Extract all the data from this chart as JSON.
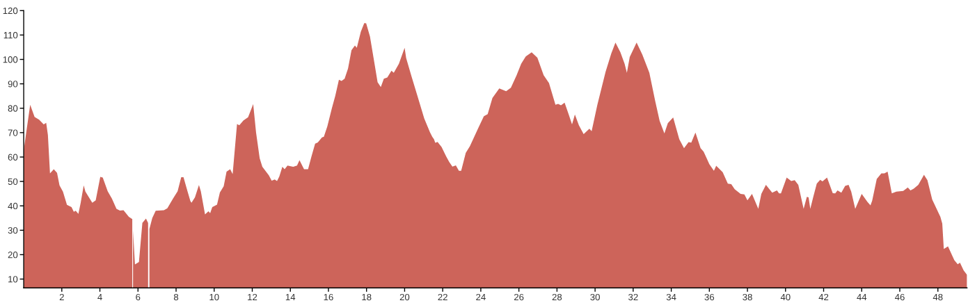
{
  "chart_data": {
    "type": "area",
    "color": "#cd645a",
    "x": [
      0,
      0.15,
      0.34,
      0.57,
      0.81,
      1.05,
      1.18,
      1.27,
      1.38,
      1.58,
      1.75,
      1.88,
      2.06,
      2.27,
      2.51,
      2.63,
      2.73,
      2.87,
      2.99,
      3.15,
      3.24,
      3.6,
      3.78,
      4.02,
      4.15,
      4.41,
      4.63,
      4.87,
      5.05,
      5.24,
      5.52,
      5.7,
      5.72,
      5.74,
      5.84,
      6.05,
      6.23,
      6.42,
      6.53,
      6.56,
      6.6,
      6.75,
      6.93,
      7.36,
      7.54,
      7.84,
      8.08,
      8.27,
      8.39,
      8.6,
      8.75,
      8.81,
      8.99,
      9.2,
      9.3,
      9.52,
      9.7,
      9.79,
      9.9,
      10.15,
      10.3,
      10.5,
      10.65,
      10.84,
      10.97,
      11.2,
      11.32,
      11.54,
      11.78,
      12.05,
      12.2,
      12.39,
      12.53,
      12.87,
      13.02,
      13.18,
      13.3,
      13.42,
      13.58,
      13.7,
      13.85,
      14.15,
      14.35,
      14.48,
      14.72,
      14.93,
      15.1,
      15.3,
      15.44,
      15.66,
      15.76,
      15.94,
      16.18,
      16.36,
      16.55,
      16.69,
      16.85,
      17.03,
      17.21,
      17.39,
      17.49,
      17.7,
      17.88,
      17.98,
      18.18,
      18.42,
      18.58,
      18.75,
      18.91,
      19.09,
      19.31,
      19.43,
      19.7,
      20.0,
      20.08,
      20.36,
      20.67,
      21.03,
      21.33,
      21.45,
      21.54,
      21.61,
      21.73,
      21.94,
      22.18,
      22.34,
      22.51,
      22.69,
      22.85,
      22.97,
      23.21,
      23.43,
      23.82,
      24.16,
      24.36,
      24.61,
      24.97,
      25.33,
      25.58,
      25.88,
      26.12,
      26.36,
      26.67,
      26.97,
      27.3,
      27.58,
      27.92,
      28.06,
      28.21,
      28.4,
      28.61,
      28.79,
      28.94,
      29.15,
      29.4,
      29.7,
      29.82,
      30.12,
      30.55,
      30.85,
      31.07,
      31.33,
      31.55,
      31.67,
      31.82,
      32.18,
      32.48,
      32.85,
      33.15,
      33.39,
      33.64,
      33.82,
      34.1,
      34.42,
      34.67,
      34.91,
      35.05,
      35.27,
      35.54,
      35.7,
      36.0,
      36.24,
      36.36,
      36.7,
      36.97,
      37.15,
      37.33,
      37.64,
      37.84,
      38.0,
      38.24,
      38.57,
      38.73,
      38.97,
      39.3,
      39.55,
      39.66,
      39.76,
      40.06,
      40.3,
      40.48,
      40.67,
      40.95,
      41.12,
      41.21,
      41.3,
      41.45,
      41.64,
      41.82,
      41.94,
      42.18,
      42.48,
      42.61,
      42.73,
      42.93,
      43.13,
      43.31,
      43.45,
      43.66,
      44.0,
      44.3,
      44.46,
      44.55,
      44.79,
      45.03,
      45.19,
      45.36,
      45.58,
      45.82,
      46.18,
      46.42,
      46.56,
      46.73,
      46.97,
      47.27,
      47.45,
      47.7,
      48.13,
      48.23,
      48.31,
      48.53,
      48.86,
      49.04,
      49.16,
      49.35,
      49.53
    ],
    "values": [
      62.7,
      71,
      81.4,
      76.4,
      75.3,
      73.4,
      74,
      69,
      53.3,
      55,
      53.5,
      48.4,
      45.8,
      40.4,
      39.5,
      37.6,
      38,
      36.7,
      41.2,
      48.4,
      45.8,
      41.3,
      42.3,
      51.9,
      51.6,
      46,
      43,
      38.8,
      38.1,
      38.2,
      35.5,
      34.6,
      null,
      30,
      16,
      17,
      33,
      34.8,
      33,
      null,
      30.5,
      35,
      38,
      38.2,
      39,
      43,
      46,
      51.7,
      51.7,
      46,
      42,
      41.3,
      43.5,
      48.5,
      46,
      36.5,
      37.8,
      37,
      39.5,
      40.5,
      45.5,
      48,
      54,
      55,
      53,
      73.5,
      73,
      75,
      76.3,
      81.7,
      70,
      59.5,
      56,
      52.5,
      50.3,
      50.8,
      50.2,
      52,
      56,
      55,
      56.5,
      56,
      56.5,
      58.7,
      55,
      55,
      60,
      65.5,
      66,
      68,
      68.3,
      72.5,
      80,
      85.1,
      91.7,
      91.2,
      92.1,
      96.3,
      103.8,
      105.7,
      104.8,
      111.3,
      114.9,
      114.8,
      109.4,
      98.2,
      90.7,
      88.7,
      92.1,
      92.6,
      95.4,
      94.5,
      98.2,
      104.8,
      100.6,
      93.1,
      85.1,
      75.8,
      70.2,
      68.3,
      67.3,
      65.8,
      66.2,
      64.1,
      60.3,
      58,
      56.1,
      56.6,
      54.4,
      54.4,
      61.7,
      64.5,
      71.1,
      76.7,
      77.6,
      84.2,
      88.1,
      87,
      88.4,
      93.5,
      98.2,
      101.2,
      102.9,
      100.7,
      93.5,
      90.3,
      81.4,
      81.8,
      81.2,
      82.3,
      77.6,
      73.4,
      77.4,
      73,
      69.4,
      71.6,
      70.6,
      81.4,
      94.9,
      102.4,
      106.9,
      102.9,
      98.2,
      94.5,
      101,
      106.9,
      102,
      94.5,
      83.2,
      74.8,
      69.7,
      73.9,
      76.2,
      67.3,
      63.6,
      66.1,
      65.9,
      70,
      63.6,
      62.2,
      57.1,
      54.4,
      56.4,
      53.8,
      49.1,
      48.9,
      46.8,
      44.9,
      44.7,
      42.3,
      44.9,
      38.8,
      44.9,
      48.6,
      45.4,
      46.3,
      45.1,
      45.1,
      51.6,
      50.2,
      50.5,
      48.6,
      38.8,
      43.7,
      43.5,
      38.8,
      43.5,
      49.1,
      50.7,
      50,
      51.6,
      45.2,
      45.1,
      46.3,
      45.4,
      48.2,
      48.6,
      45.8,
      38.8,
      44.9,
      41.6,
      40.2,
      42.1,
      51,
      53.3,
      53.3,
      54,
      45.1,
      45.8,
      46.1,
      47.5,
      46.3,
      47,
      48.6,
      52.7,
      50.5,
      42.6,
      35.5,
      32.7,
      22.3,
      23.4,
      17.8,
      16.1,
      16.7,
      13.6,
      11.7
    ],
    "xlim": [
      0,
      49.53
    ],
    "ylim": [
      6.4,
      120
    ],
    "xticks": [
      2,
      4,
      6,
      8,
      10,
      12,
      14,
      16,
      18,
      20,
      22,
      24,
      26,
      28,
      30,
      32,
      34,
      36,
      38,
      40,
      42,
      44,
      46,
      48
    ],
    "yticks": [
      10,
      20,
      30,
      40,
      50,
      60,
      70,
      80,
      90,
      100,
      110,
      120
    ],
    "grid": false,
    "legend": false
  }
}
